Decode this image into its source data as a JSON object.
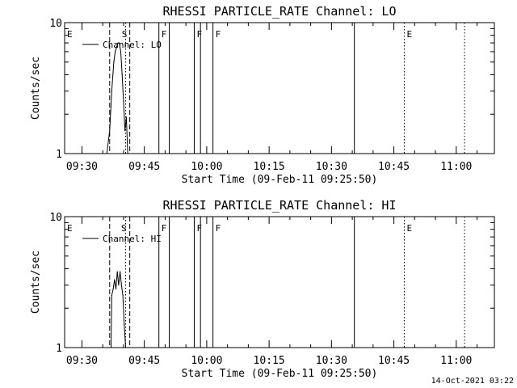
{
  "timestamp": "14-Oct-2021 03:22",
  "chart_data": [
    {
      "type": "line",
      "title": "RHESSI PARTICLE_RATE Channel: LO",
      "xlabel": "Start Time (09-Feb-11 09:25:50)",
      "ylabel": "Counts/sec",
      "y_scale": "log",
      "ylim": [
        1,
        10
      ],
      "y_ticks": [
        "1",
        "10"
      ],
      "xlim": [
        "09:25:50",
        "11:09:10"
      ],
      "x_ticks": [
        "09:30",
        "09:45",
        "10:00",
        "10:15",
        "10:30",
        "10:45",
        "11:00"
      ],
      "legend": {
        "entries": [
          "Channel: LO"
        ],
        "placement": "top-left"
      },
      "series": [
        {
          "name": "Channel: LO",
          "x": [
            "09:36:00",
            "09:36:40",
            "09:37:10",
            "09:37:40",
            "09:38:00",
            "09:38:20",
            "09:38:40",
            "09:39:00",
            "09:39:20",
            "09:39:40",
            "09:40:00",
            "09:40:20",
            "09:40:40",
            "09:41:00"
          ],
          "y": [
            1.0,
            1.5,
            3.0,
            5.0,
            6.0,
            6.5,
            7.0,
            7.0,
            6.0,
            4.0,
            2.5,
            1.5,
            1.9,
            1.0
          ]
        }
      ],
      "event_markers": [
        {
          "time": "09:25:50",
          "label": "E",
          "style": "none"
        },
        {
          "time": "09:39:00",
          "label": "S",
          "style": "none"
        },
        {
          "time": "09:36:40",
          "label": "",
          "style": "dashed"
        },
        {
          "time": "09:40:30",
          "label": "",
          "style": "dotted"
        },
        {
          "time": "09:41:30",
          "label": "",
          "style": "dashed"
        },
        {
          "time": "09:48:30",
          "label": "F",
          "style": "solid"
        },
        {
          "time": "09:51:00",
          "label": "",
          "style": "solid"
        },
        {
          "time": "09:57:00",
          "label": "F",
          "style": "solid"
        },
        {
          "time": "09:58:30",
          "label": "",
          "style": "solid"
        },
        {
          "time": "10:01:30",
          "label": "F",
          "style": "solid"
        },
        {
          "time": "10:35:30",
          "label": "",
          "style": "solid"
        },
        {
          "time": "10:47:30",
          "label": "E",
          "style": "dotted"
        },
        {
          "time": "11:02:00",
          "label": "",
          "style": "dotted"
        }
      ]
    },
    {
      "type": "line",
      "title": "RHESSI PARTICLE_RATE Channel: HI",
      "xlabel": "Start Time (09-Feb-11 09:25:50)",
      "ylabel": "Counts/sec",
      "y_scale": "log",
      "ylim": [
        1,
        10
      ],
      "y_ticks": [
        "1",
        "10"
      ],
      "xlim": [
        "09:25:50",
        "11:09:10"
      ],
      "x_ticks": [
        "09:30",
        "09:45",
        "10:00",
        "10:15",
        "10:30",
        "10:45",
        "11:00"
      ],
      "legend": {
        "entries": [
          "Channel: HI"
        ],
        "placement": "top-left"
      },
      "series": [
        {
          "name": "Channel: HI",
          "x": [
            "09:37:00",
            "09:37:10",
            "09:37:30",
            "09:37:50",
            "09:38:10",
            "09:38:30",
            "09:38:50",
            "09:39:10",
            "09:39:30",
            "09:39:50",
            "09:40:10",
            "09:40:30"
          ],
          "y": [
            1.0,
            2.5,
            2.8,
            3.3,
            2.8,
            3.8,
            3.0,
            3.8,
            3.0,
            2.5,
            1.5,
            1.0
          ]
        }
      ],
      "event_markers": [
        {
          "time": "09:25:50",
          "label": "E",
          "style": "none"
        },
        {
          "time": "09:38:50",
          "label": "S",
          "style": "none"
        },
        {
          "time": "09:36:40",
          "label": "",
          "style": "dashed"
        },
        {
          "time": "09:40:30",
          "label": "",
          "style": "dotted"
        },
        {
          "time": "09:41:30",
          "label": "",
          "style": "dashed"
        },
        {
          "time": "09:48:30",
          "label": "F",
          "style": "solid"
        },
        {
          "time": "09:51:00",
          "label": "",
          "style": "solid"
        },
        {
          "time": "09:57:00",
          "label": "F",
          "style": "solid"
        },
        {
          "time": "09:58:30",
          "label": "",
          "style": "solid"
        },
        {
          "time": "10:01:30",
          "label": "F",
          "style": "solid"
        },
        {
          "time": "10:35:30",
          "label": "",
          "style": "solid"
        },
        {
          "time": "10:47:30",
          "label": "E",
          "style": "dotted"
        },
        {
          "time": "11:02:00",
          "label": "",
          "style": "dotted"
        }
      ]
    }
  ]
}
